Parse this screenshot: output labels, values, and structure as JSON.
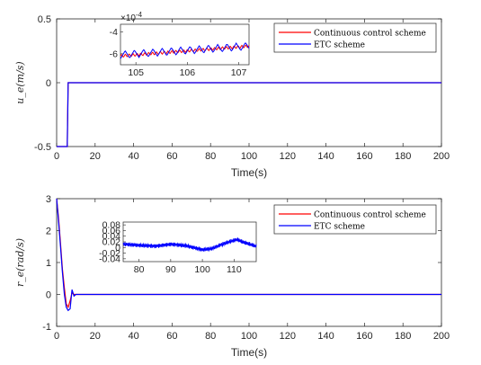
{
  "chart_data": [
    {
      "type": "line",
      "xlabel": "Time(s)",
      "ylabel": "u_e(m/s)",
      "xlim": [
        0,
        200
      ],
      "ylim": [
        -0.5,
        0.5
      ],
      "xticks": [
        "0",
        "20",
        "40",
        "60",
        "80",
        "100",
        "120",
        "140",
        "160",
        "180",
        "200"
      ],
      "yticks": [
        "0.5",
        "0",
        "-0.5"
      ],
      "ytick_values": [
        0.5,
        0,
        -0.5
      ],
      "legend": {
        "position": "top-right",
        "entries": [
          "Continuous control scheme",
          "ETC scheme"
        ]
      },
      "series": [
        {
          "name": "Continuous control scheme",
          "color": "#ff0000",
          "x": [
            0,
            5.5,
            6,
            7,
            10,
            200
          ],
          "y": [
            -0.5,
            -0.5,
            0.0,
            0.0,
            0.0,
            0.0
          ]
        },
        {
          "name": "ETC scheme",
          "color": "#0000ff",
          "x": [
            0,
            5.5,
            6,
            7,
            10,
            200
          ],
          "y": [
            -0.5,
            -0.5,
            0.0,
            0.0,
            0.0,
            0.0
          ]
        }
      ],
      "inset": {
        "xlim": [
          104.7,
          107.2
        ],
        "ylim": [
          -7,
          -3.3
        ],
        "exponent_label": "×10",
        "exponent_power": "-4",
        "xticks": [
          "105",
          "106",
          "107"
        ],
        "xtick_values": [
          105,
          106,
          107
        ],
        "yticks": [
          "-4",
          "-6"
        ],
        "ytick_values": [
          -4,
          -6
        ],
        "series": [
          {
            "name": "Continuous control scheme",
            "color": "#ff0000",
            "x_range": [
              104.7,
              107.2
            ],
            "trend": [
              -6.2,
              -5.3
            ]
          },
          {
            "name": "ETC scheme",
            "color": "#0000ff",
            "x_range": [
              104.7,
              107.2
            ],
            "trend": [
              -6.1,
              -5.3
            ],
            "oscillation_amplitude": 0.35
          }
        ]
      }
    },
    {
      "type": "line",
      "xlabel": "Time(s)",
      "ylabel": "r_e(rad/s)",
      "xlim": [
        0,
        200
      ],
      "ylim": [
        -1,
        3
      ],
      "xticks": [
        "0",
        "20",
        "40",
        "60",
        "80",
        "100",
        "120",
        "140",
        "160",
        "180",
        "200"
      ],
      "yticks": [
        "3",
        "2",
        "1",
        "0",
        "-1"
      ],
      "ytick_values": [
        3,
        2,
        1,
        0,
        -1
      ],
      "legend": {
        "position": "top-right",
        "entries": [
          "Continuous control scheme",
          "ETC scheme"
        ]
      },
      "series": [
        {
          "name": "Continuous control scheme",
          "color": "#ff0000",
          "x": [
            0,
            1,
            2,
            3,
            4,
            5,
            6,
            7,
            8,
            9,
            10,
            12,
            200
          ],
          "y": [
            3.0,
            2.4,
            1.6,
            0.8,
            0.2,
            -0.3,
            -0.4,
            -0.2,
            0.05,
            0.0,
            0.0,
            0.0,
            0.0
          ]
        },
        {
          "name": "ETC scheme",
          "color": "#0000ff",
          "x": [
            0,
            1,
            2,
            3,
            4,
            5,
            6,
            7,
            8,
            9,
            10,
            12,
            200
          ],
          "y": [
            3.0,
            2.3,
            1.5,
            0.7,
            0.0,
            -0.4,
            -0.5,
            -0.45,
            0.15,
            -0.05,
            0.0,
            0.0,
            0.0
          ]
        }
      ],
      "inset": {
        "xlim": [
          75,
          117
        ],
        "ylim": [
          -0.05,
          0.09
        ],
        "xticks": [
          "80",
          "90",
          "100",
          "110"
        ],
        "xtick_values": [
          80,
          90,
          100,
          110
        ],
        "yticks": [
          "0.08",
          "0.06",
          "0.04",
          "0.02",
          "0",
          "-0.02",
          "-0.04"
        ],
        "ytick_values": [
          0.08,
          0.06,
          0.04,
          0.02,
          0,
          -0.02,
          -0.04
        ],
        "series": [
          {
            "name": "Continuous control scheme",
            "color": "#ff0000",
            "x": [
              75,
              80,
              85,
              90,
              95,
              100,
              103,
              106,
              109,
              111,
              113,
              117
            ],
            "y": [
              0.012,
              0.008,
              0.005,
              0.012,
              0.006,
              -0.008,
              -0.004,
              0.01,
              0.022,
              0.03,
              0.02,
              0.005
            ]
          },
          {
            "name": "ETC scheme",
            "color": "#0000ff",
            "x": [
              75,
              80,
              85,
              90,
              95,
              100,
              103,
              106,
              109,
              111,
              113,
              117
            ],
            "y": [
              0.012,
              0.008,
              0.005,
              0.012,
              0.006,
              -0.008,
              -0.004,
              0.01,
              0.022,
              0.028,
              0.018,
              0.004
            ],
            "oscillation_amplitude": 0.008
          }
        ]
      }
    }
  ]
}
